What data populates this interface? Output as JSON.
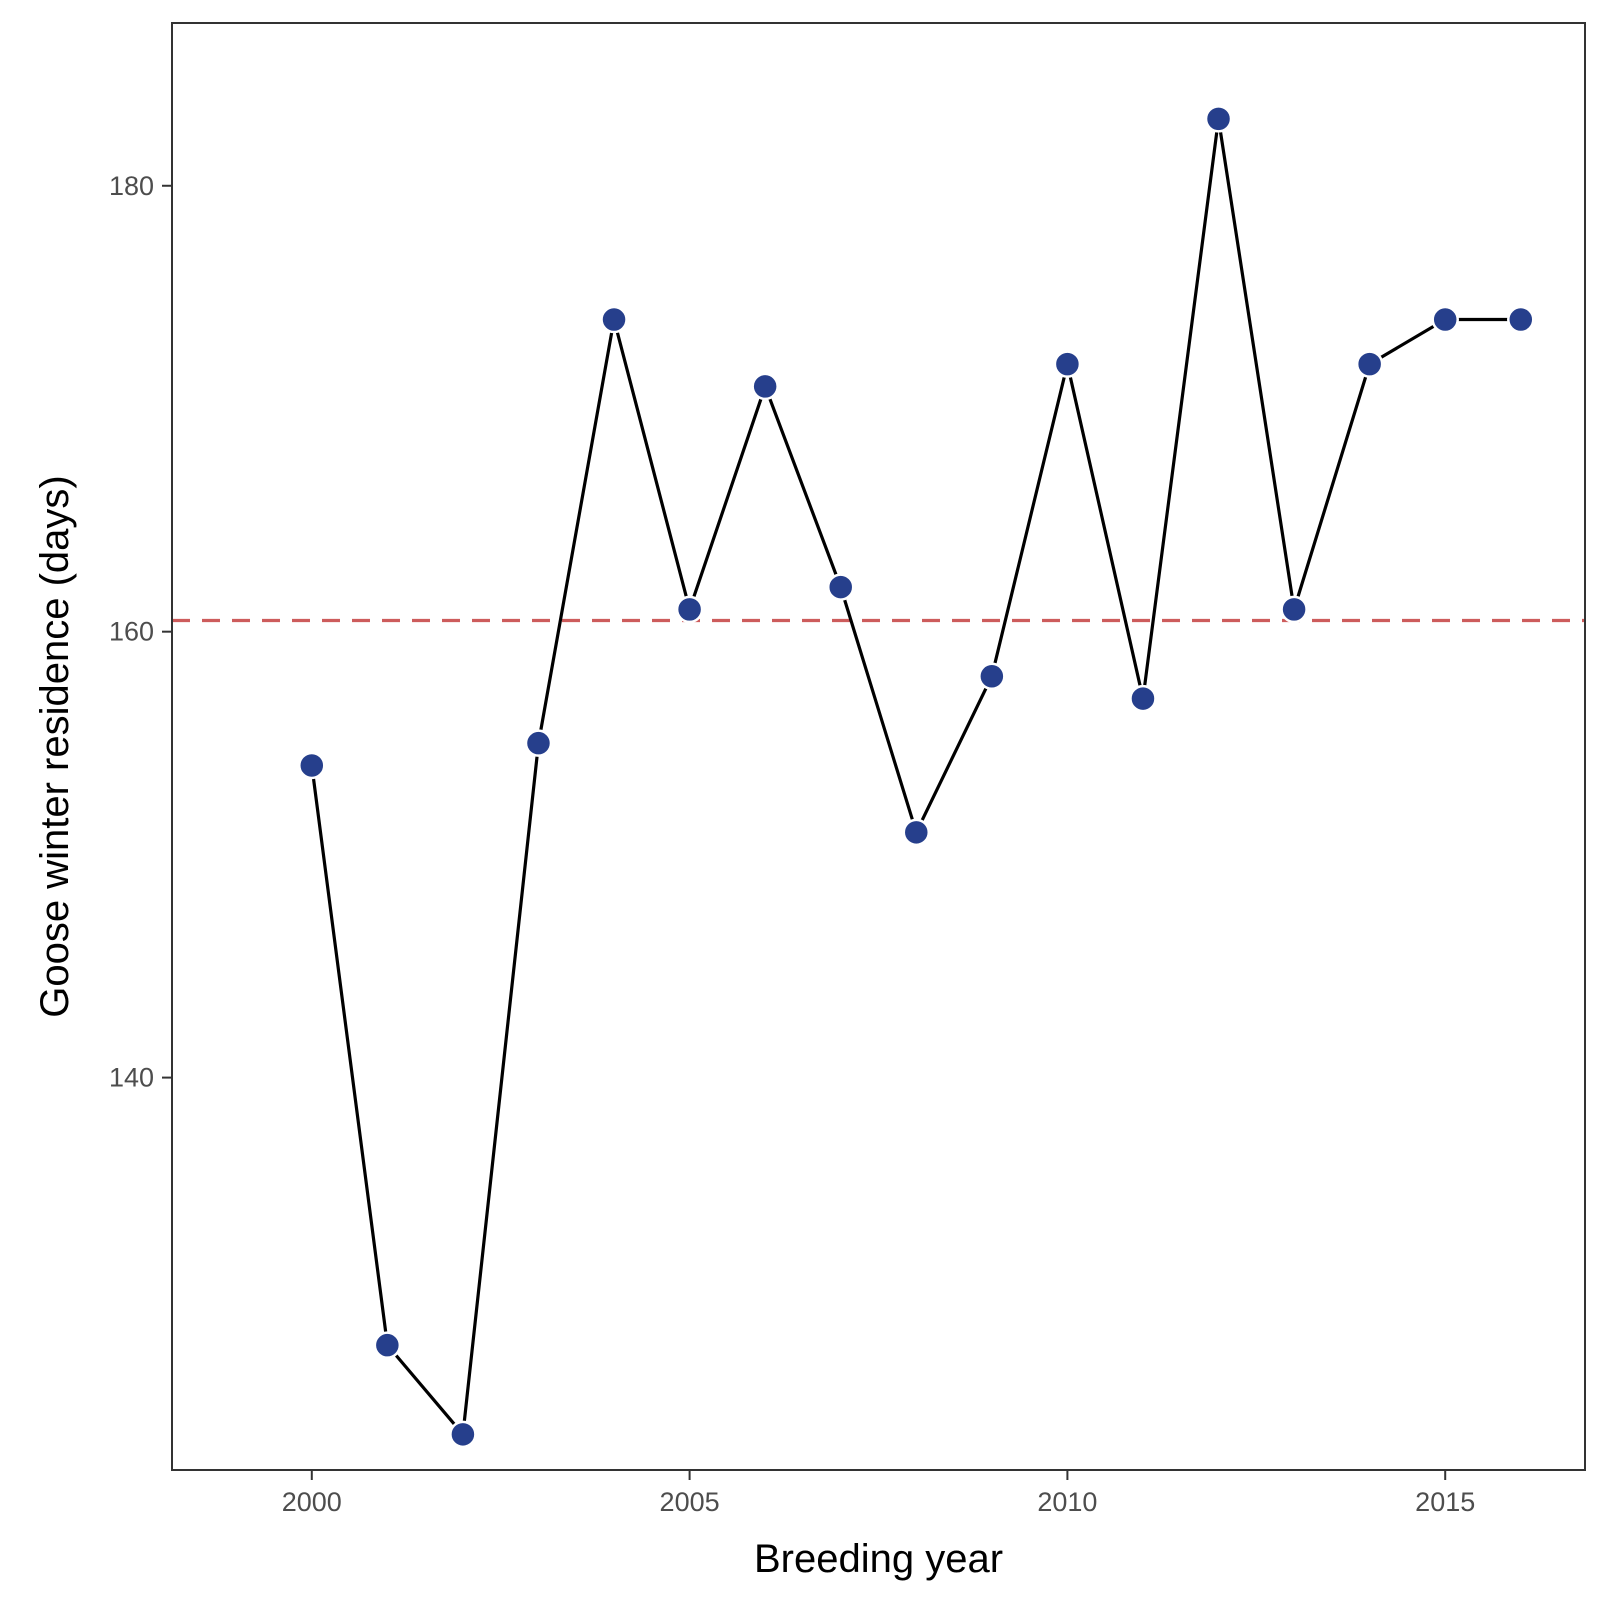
{
  "chart_data": {
    "type": "line",
    "title": "",
    "xlabel": "Breeding year",
    "ylabel": "Goose winter residence (days)",
    "x": [
      2000,
      2001,
      2002,
      2003,
      2004,
      2005,
      2006,
      2007,
      2008,
      2009,
      2010,
      2011,
      2012,
      2013,
      2014,
      2015,
      2016
    ],
    "y": [
      154,
      128,
      124,
      155,
      174,
      161,
      171,
      162,
      151,
      158,
      172,
      157,
      183,
      161,
      172,
      174,
      174
    ],
    "xlim": [
      1998.15,
      2016.85
    ],
    "ylim": [
      122.4,
      187.3
    ],
    "xticks": [
      2000,
      2005,
      2010,
      2015
    ],
    "yticks": [
      140,
      160,
      180
    ],
    "reference_line": {
      "y": 160.5,
      "style": "dashed",
      "color": "#cd5c5c"
    },
    "point_color": "#263f8c",
    "line_color": "#000000",
    "grid": false,
    "legend": "none"
  }
}
